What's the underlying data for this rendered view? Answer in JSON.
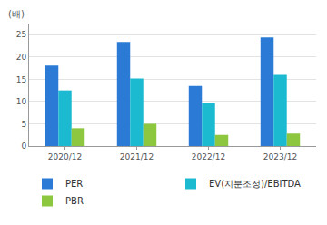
{
  "chart_data": {
    "type": "bar",
    "ylabel": "(배)",
    "categories": [
      "2020/12",
      "2021/12",
      "2022/12",
      "2023/12"
    ],
    "series": [
      {
        "name": "PER",
        "color": "#2b7bd6",
        "values": [
          18.1,
          23.4,
          13.5,
          24.4
        ]
      },
      {
        "name": "EV(지분조정)/EBITDA",
        "color": "#1cbad0",
        "values": [
          12.5,
          15.2,
          9.7,
          16.0
        ]
      },
      {
        "name": "PBR",
        "color": "#8dc63f",
        "values": [
          4.0,
          5.0,
          2.5,
          2.8
        ]
      }
    ],
    "ylim": [
      0,
      27.5
    ],
    "yticks": [
      0,
      5,
      10,
      15,
      20,
      25
    ],
    "grid": true,
    "legend": "bottom"
  }
}
